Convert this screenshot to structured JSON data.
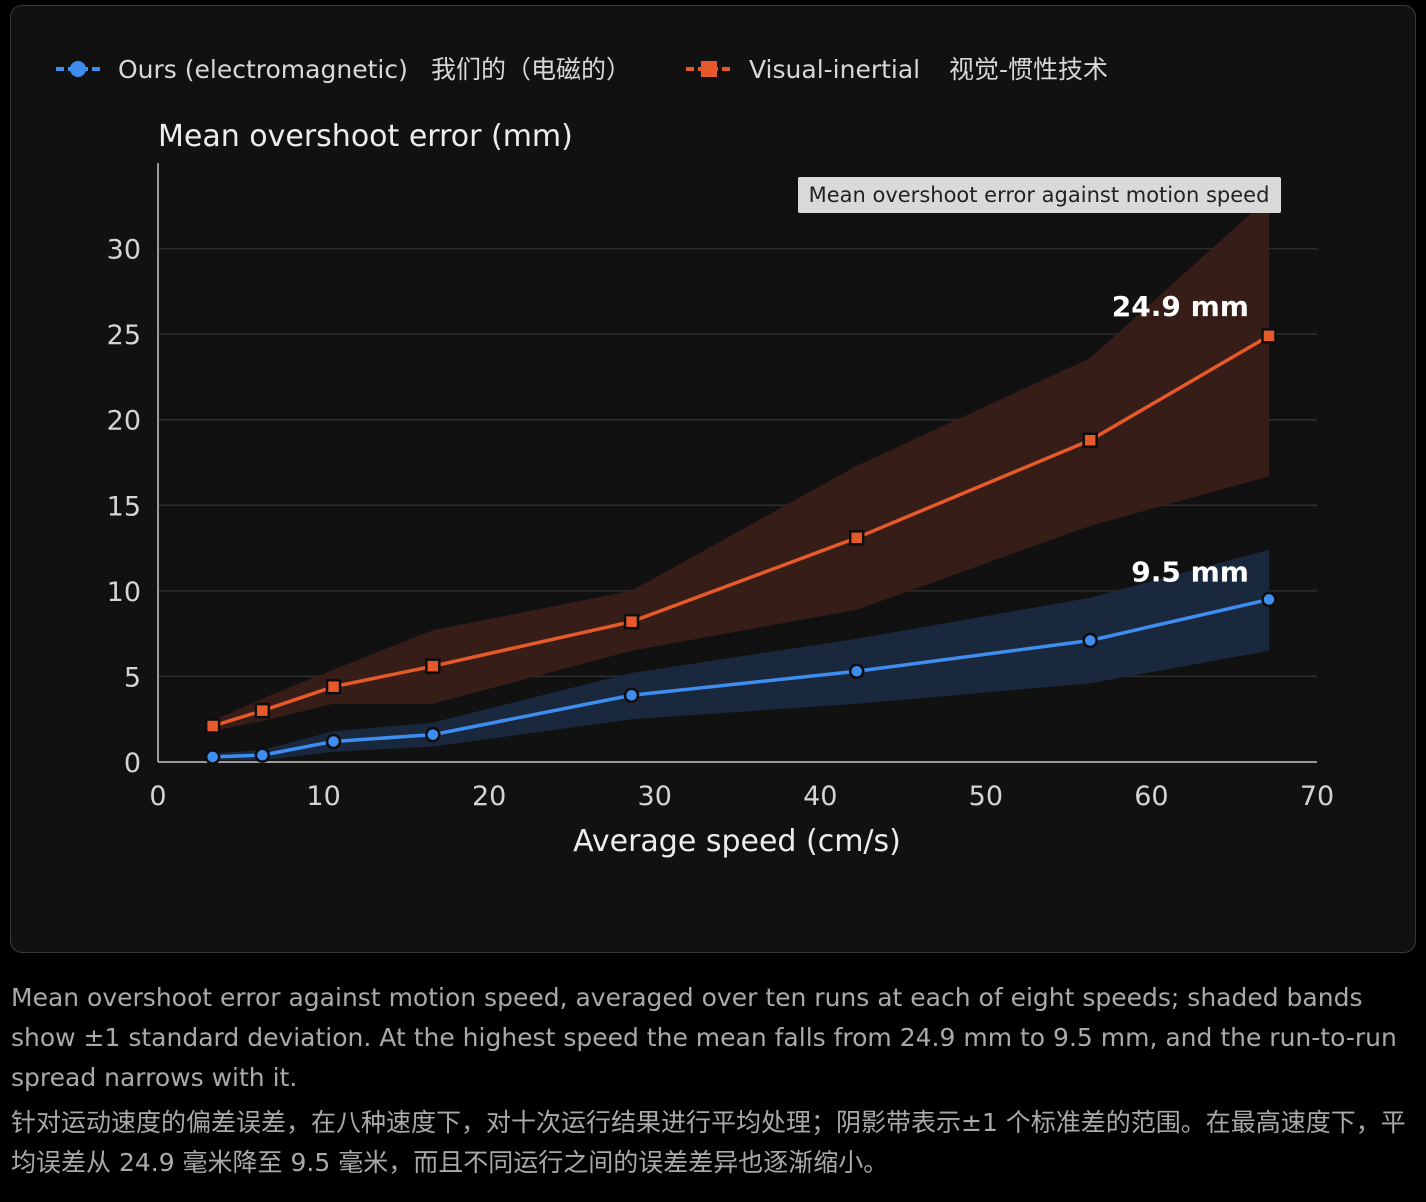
{
  "legend": {
    "series_a": "Ours (electromagnetic)",
    "series_a_zh": "我们的（电磁的）",
    "series_b": "Visual-inertial",
    "series_b_zh": "视觉-惯性技术"
  },
  "tooltip": "Mean overshoot error against motion speed",
  "caption": {
    "en": "Mean overshoot error against motion speed, averaged over ten runs at each of eight speeds; shaded bands show ±1 standard deviation. At the highest speed the mean falls from 24.9 mm to 9.5 mm, and the run-to-run spread narrows with it.",
    "zh": "针对运动速度的偏差误差，在八种速度下，对十次运行结果进行平均处理；阴影带表示±1 个标准差的范围。在最高速度下，平均误差从 24.9 毫米降至 9.5 毫米，而且不同运行之间的误差差异也逐渐缩小。"
  },
  "chart_data": {
    "type": "line",
    "title": "",
    "ylabel": "Mean overshoot error (mm)",
    "xlabel": "Average speed (cm/s)",
    "xlim": [
      0,
      70
    ],
    "ylim": [
      0,
      35
    ],
    "xticks": [
      0,
      10,
      20,
      30,
      40,
      50,
      60,
      70
    ],
    "yticks": [
      0,
      5,
      10,
      15,
      20,
      25,
      30
    ],
    "grid": true,
    "legend_position": "top-left",
    "x": [
      3.3,
      6.3,
      10.6,
      16.6,
      28.6,
      42.2,
      56.3,
      67.1
    ],
    "series": [
      {
        "name": "Ours (electromagnetic)",
        "color": "#3d8ef0",
        "band_color": "#1a2a40",
        "marker": "circle",
        "values": [
          0.3,
          0.4,
          1.2,
          1.6,
          3.9,
          5.3,
          7.1,
          9.5
        ],
        "lower": [
          0.1,
          0.1,
          0.6,
          0.9,
          2.5,
          3.4,
          4.6,
          6.5
        ],
        "upper": [
          0.5,
          0.7,
          1.8,
          2.3,
          5.2,
          7.2,
          9.6,
          12.4
        ],
        "end_label": "9.5 mm"
      },
      {
        "name": "Visual-inertial",
        "color": "#e5592a",
        "band_color": "#3a1f18",
        "marker": "square",
        "values": [
          2.1,
          3.0,
          4.4,
          5.6,
          8.2,
          13.1,
          18.8,
          24.9
        ],
        "lower": [
          1.8,
          2.4,
          3.4,
          3.4,
          6.5,
          8.9,
          13.8,
          16.7
        ],
        "upper": [
          2.4,
          3.7,
          5.4,
          7.7,
          10.0,
          17.3,
          23.6,
          33.0
        ],
        "end_label": "24.9 mm"
      }
    ]
  }
}
